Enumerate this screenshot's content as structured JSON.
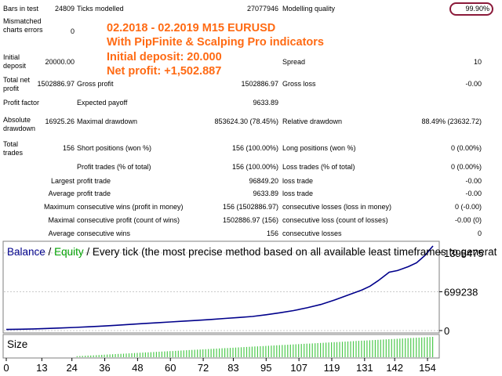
{
  "report": {
    "bars_in_test_label": "Bars in test",
    "bars_in_test_value": "24809",
    "ticks_modelled_label": "Ticks modelled",
    "ticks_modelled_value": "27077946",
    "modelling_quality_label": "Modelling quality",
    "modelling_quality_value": "99.90%",
    "mismatched_label": "Mismatched charts errors",
    "mismatched_value": "0",
    "initial_deposit_label": "Initial deposit",
    "initial_deposit_value": "20000.00",
    "spread_label": "Spread",
    "spread_value": "10",
    "total_net_profit_label": "Total net profit",
    "total_net_profit_value": "1502886.97",
    "gross_profit_label": "Gross profit",
    "gross_profit_value": "1502886.97",
    "gross_loss_label": "Gross loss",
    "gross_loss_value": "-0.00",
    "profit_factor_label": "Profit factor",
    "expected_payoff_label": "Expected payoff",
    "expected_payoff_value": "9633.89",
    "absolute_drawdown_label": "Absolute drawdown",
    "absolute_drawdown_value": "16925.26",
    "maximal_drawdown_label": "Maximal drawdown",
    "maximal_drawdown_value": "853624.30 (78.45%)",
    "relative_drawdown_label": "Relative drawdown",
    "relative_drawdown_value": "88.49% (23632.72)",
    "total_trades_label": "Total trades",
    "total_trades_value": "156",
    "short_positions_label": "Short positions (won %)",
    "short_positions_value": "156 (100.00%)",
    "long_positions_label": "Long positions (won %)",
    "long_positions_value": "0 (0.00%)",
    "profit_trades_label": "Profit trades (% of total)",
    "profit_trades_value": "156 (100.00%)",
    "loss_trades_label": "Loss trades (% of total)",
    "loss_trades_value": "0 (0.00%)",
    "largest_label": "Largest",
    "largest_profit_label": "profit trade",
    "largest_profit_value": "96849.20",
    "largest_loss_label": "loss trade",
    "largest_loss_value": "-0.00",
    "average_label": "Average",
    "average_profit_label": "profit trade",
    "average_profit_value": "9633.89",
    "average_loss_label": "loss trade",
    "average_loss_value": "-0.00",
    "maximum_label": "Maximum",
    "max_consec_wins_label": "consecutive wins (profit in money)",
    "max_consec_wins_value": "156 (1502886.97)",
    "max_consec_losses_label": "consecutive losses (loss in money)",
    "max_consec_losses_value": "0 (-0.00)",
    "maximal_label": "Maximal",
    "maximal_consec_profit_label": "consecutive profit (count of wins)",
    "maximal_consec_profit_value": "1502886.97 (156)",
    "maximal_consec_loss_label": "consecutive loss (count of losses)",
    "maximal_consec_loss_value": "-0.00 (0)",
    "average2_label": "Average",
    "avg_consec_wins_label": "consecutive wins",
    "avg_consec_wins_value": "156",
    "avg_consec_losses_label": "consecutive losses",
    "avg_consec_losses_value": "0"
  },
  "overlay": {
    "line1": "02.2018 - 02.2019 M15 EURUSD",
    "line2": "With PipFinite & Scalping Pro indicators",
    "line3": "Initial deposit: 20.000",
    "line4": "Net profit: +1,502.887"
  },
  "colors": {
    "overlay_text": "#ff6a13",
    "quality_ring": "#8b1a3a",
    "balance_line": "#00008b",
    "equity_legend": "#00a000",
    "size_bars": "#4cc94c",
    "grid": "#c8c8c8"
  },
  "chart_data": {
    "type": "line",
    "legend": {
      "balance": "Balance",
      "sep1": " / ",
      "equity": "Equity",
      "rest": " / Every tick (the most precise method based on all available least timeframes to generat"
    },
    "size_label": "Size",
    "ylim": [
      0,
      1522887
    ],
    "y_tick_labels": [
      "1398475",
      "699238",
      "0"
    ],
    "y_tick_values": [
      1398475,
      699238,
      0
    ],
    "x_tick_labels": [
      "0",
      "13",
      "24",
      "36",
      "48",
      "60",
      "72",
      "83",
      "95",
      "107",
      "119",
      "131",
      "142",
      "154"
    ],
    "x_tick_values": [
      0,
      13,
      24,
      36,
      48,
      60,
      72,
      83,
      95,
      107,
      119,
      131,
      142,
      154
    ],
    "xlim": [
      0,
      156
    ],
    "series": [
      {
        "name": "Balance",
        "x": [
          0,
          5,
          10,
          15,
          20,
          25,
          30,
          35,
          40,
          45,
          50,
          55,
          60,
          65,
          70,
          75,
          80,
          85,
          90,
          95,
          100,
          105,
          110,
          115,
          120,
          125,
          130,
          133,
          136,
          140,
          143,
          147,
          150,
          153,
          156
        ],
        "values": [
          20000,
          24000,
          30000,
          38000,
          47000,
          57000,
          68000,
          80000,
          94000,
          110000,
          126000,
          140000,
          155000,
          170000,
          185000,
          200000,
          218000,
          236000,
          254000,
          285000,
          320000,
          360000,
          410000,
          470000,
          550000,
          640000,
          730000,
          800000,
          900000,
          1050000,
          1080000,
          1150000,
          1220000,
          1350000,
          1522887
        ]
      }
    ],
    "size": {
      "start_trade": 26,
      "end_trade": 156,
      "start_level": 0.05,
      "end_level": 1.0
    }
  }
}
